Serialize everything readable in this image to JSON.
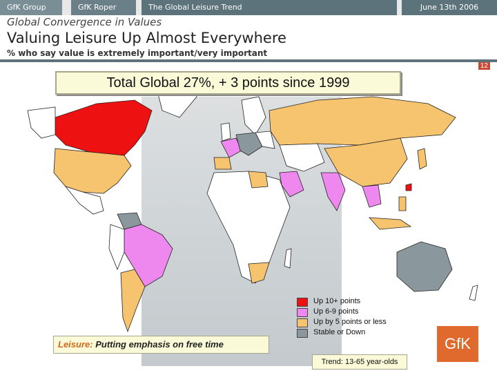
{
  "header": {
    "tabs": [
      "GfK Group",
      "GfK Roper",
      "The Global Leisure Trend"
    ],
    "date": "June 13th 2006"
  },
  "kicker": "Global Convergence in Values",
  "title": "Valuing Leisure Up Almost Everywhere",
  "subtitle": "% who say value is extremely important/very important",
  "page_number": "12",
  "banner": "Total Global 27%, + 3 points since 1999",
  "legend": [
    {
      "label": "Up 10+ points",
      "color": "#ee1111"
    },
    {
      "label": "Up 6-9 points",
      "color": "#ee88ee"
    },
    {
      "label": "Up by 5 points or less",
      "color": "#f6c46e"
    },
    {
      "label": "Stable or Down",
      "color": "#8a979c"
    }
  ],
  "caption": {
    "keyword": "Leisure:",
    "text": "Putting emphasis on free time"
  },
  "trend": "Trend: 13-65 year-olds",
  "logo": "GfK",
  "colors": {
    "ocean": "#ffffff",
    "land": "#ffffff",
    "border": "#222222"
  }
}
